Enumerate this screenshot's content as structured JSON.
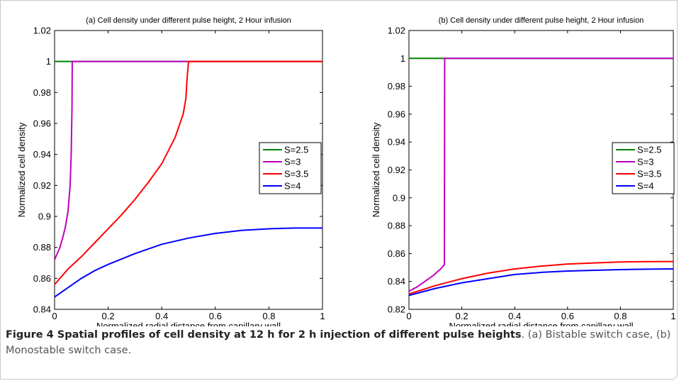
{
  "chart_data": [
    {
      "type": "line",
      "title": "(a) Cell density under different pulse height, 2 Hour infusion",
      "xlabel": "Normalized radial distance from capillary wall",
      "ylabel": "Normalized cell density",
      "xlim": [
        0,
        1
      ],
      "ylim": [
        0.84,
        1.02
      ],
      "xticks": [
        "0",
        "0.2",
        "0.4",
        "0.6",
        "0.8",
        "1"
      ],
      "yticks": [
        "0.84",
        "0.86",
        "0.88",
        "0.9",
        "0.92",
        "0.94",
        "0.96",
        "0.98",
        "1",
        "1.02"
      ],
      "legend_position": "center-right",
      "series": [
        {
          "name": "S=2.5",
          "color": "#008000",
          "x": [
            0,
            1
          ],
          "y": [
            1,
            1
          ]
        },
        {
          "name": "S=3",
          "color": "#bf00bf",
          "x": [
            0,
            0.01,
            0.02,
            0.03,
            0.04,
            0.05,
            0.058,
            0.062,
            0.065,
            0.066,
            1
          ],
          "y": [
            0.872,
            0.876,
            0.88,
            0.886,
            0.893,
            0.903,
            0.92,
            0.94,
            0.97,
            1,
            1
          ]
        },
        {
          "name": "S=3.5",
          "color": "#ff0000",
          "x": [
            0,
            0.05,
            0.1,
            0.15,
            0.2,
            0.25,
            0.3,
            0.35,
            0.4,
            0.45,
            0.48,
            0.49,
            0.495,
            0.5,
            1
          ],
          "y": [
            0.856,
            0.866,
            0.874,
            0.883,
            0.892,
            0.901,
            0.911,
            0.922,
            0.934,
            0.951,
            0.966,
            0.976,
            0.99,
            1,
            1
          ]
        },
        {
          "name": "S=4",
          "color": "#0000ff",
          "x": [
            0,
            0.05,
            0.1,
            0.15,
            0.2,
            0.3,
            0.4,
            0.5,
            0.6,
            0.7,
            0.8,
            0.9,
            1
          ],
          "y": [
            0.848,
            0.854,
            0.86,
            0.865,
            0.869,
            0.876,
            0.882,
            0.886,
            0.889,
            0.891,
            0.892,
            0.8925,
            0.8925
          ]
        }
      ]
    },
    {
      "type": "line",
      "title": "(b) Cell density under different pulse height, 2 Hour infusion",
      "xlabel": "Normalized radial distance from capillary wall",
      "ylabel": "Normalized cell density",
      "xlim": [
        0,
        1
      ],
      "ylim": [
        0.82,
        1.02
      ],
      "xticks": [
        "0",
        "0.2",
        "0.4",
        "0.6",
        "0.8",
        "1"
      ],
      "yticks": [
        "0.82",
        "0.84",
        "0.86",
        "0.88",
        "0.9",
        "0.92",
        "0.94",
        "0.96",
        "0.98",
        "1",
        "1.02"
      ],
      "legend_position": "center-right",
      "series": [
        {
          "name": "S=2.5",
          "color": "#008000",
          "x": [
            0,
            1
          ],
          "y": [
            1,
            1
          ]
        },
        {
          "name": "S=3",
          "color": "#bf00bf",
          "x": [
            0,
            0.03,
            0.06,
            0.09,
            0.12,
            0.134,
            0.135,
            1
          ],
          "y": [
            0.833,
            0.836,
            0.84,
            0.844,
            0.849,
            0.852,
            1,
            1
          ]
        },
        {
          "name": "S=3.5",
          "color": "#ff0000",
          "x": [
            0,
            0.1,
            0.2,
            0.3,
            0.4,
            0.5,
            0.6,
            0.7,
            0.8,
            0.9,
            1
          ],
          "y": [
            0.831,
            0.837,
            0.842,
            0.846,
            0.849,
            0.851,
            0.8525,
            0.8533,
            0.854,
            0.8542,
            0.8543
          ]
        },
        {
          "name": "S=4",
          "color": "#0000ff",
          "x": [
            0,
            0.1,
            0.2,
            0.3,
            0.4,
            0.5,
            0.6,
            0.7,
            0.8,
            0.9,
            1
          ],
          "y": [
            0.83,
            0.835,
            0.839,
            0.842,
            0.845,
            0.8465,
            0.8475,
            0.848,
            0.8485,
            0.8488,
            0.849
          ]
        }
      ]
    }
  ],
  "caption": {
    "title": "Figure 4 Spatial profiles of cell density at 12 h for 2 h injection of different pulse heights",
    "text": ". (a) Bistable switch case, (b) Monostable switch case."
  }
}
